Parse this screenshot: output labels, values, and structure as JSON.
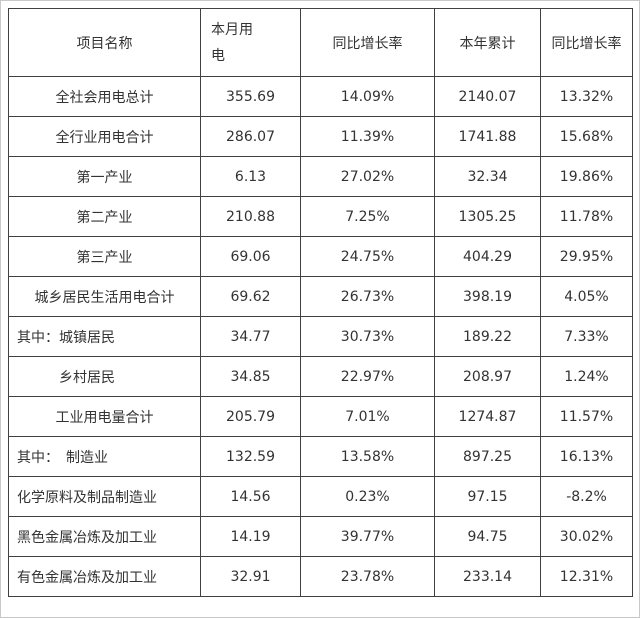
{
  "colors": {
    "background": "#ffffff",
    "page_border": "#c8c8c8",
    "table_border": "#404040",
    "text": "#333333"
  },
  "table": {
    "header": {
      "columns": [
        {
          "label": "项目名称"
        },
        {
          "label": "本月用电"
        },
        {
          "label": "同比增长率"
        },
        {
          "label": "本年累计"
        },
        {
          "label": "同比增长率"
        }
      ]
    },
    "rows": [
      {
        "name": "全社会用电总计",
        "align": "center",
        "month": "355.69",
        "month_yoy": "14.09%",
        "ytd": "2140.07",
        "ytd_yoy": "13.32%"
      },
      {
        "name": "全行业用电合计",
        "align": "center",
        "month": "286.07",
        "month_yoy": "11.39%",
        "ytd": "1741.88",
        "ytd_yoy": "15.68%"
      },
      {
        "name": "第一产业",
        "align": "center",
        "month": "6.13",
        "month_yoy": "27.02%",
        "ytd": "32.34",
        "ytd_yoy": "19.86%"
      },
      {
        "name": "第二产业",
        "align": "center",
        "month": "210.88",
        "month_yoy": "7.25%",
        "ytd": "1305.25",
        "ytd_yoy": "11.78%"
      },
      {
        "name": "第三产业",
        "align": "center",
        "month": "69.06",
        "month_yoy": "24.75%",
        "ytd": "404.29",
        "ytd_yoy": "29.95%"
      },
      {
        "name": "城乡居民生活用电合计",
        "align": "center",
        "month": "69.62",
        "month_yoy": "26.73%",
        "ytd": "398.19",
        "ytd_yoy": "4.05%"
      },
      {
        "name": "其中：城镇居民",
        "align": "left",
        "month": "34.77",
        "month_yoy": "30.73%",
        "ytd": "189.22",
        "ytd_yoy": "7.33%"
      },
      {
        "name": "　　　乡村居民",
        "align": "left",
        "month": "34.85",
        "month_yoy": "22.97%",
        "ytd": "208.97",
        "ytd_yoy": "1.24%"
      },
      {
        "name": "工业用电量合计",
        "align": "center",
        "month": "205.79",
        "month_yoy": "7.01%",
        "ytd": "1274.87",
        "ytd_yoy": "11.57%"
      },
      {
        "name": "其中：　制造业",
        "align": "left",
        "month": "132.59",
        "month_yoy": "13.58%",
        "ytd": "897.25",
        "ytd_yoy": "16.13%"
      },
      {
        "name": "化学原料及制品制造业",
        "align": "left",
        "month": "14.56",
        "month_yoy": "0.23%",
        "ytd": "97.15",
        "ytd_yoy": "-8.2%"
      },
      {
        "name": "黑色金属冶炼及加工业",
        "align": "left",
        "month": "14.19",
        "month_yoy": "39.77%",
        "ytd": "94.75",
        "ytd_yoy": "30.02%"
      },
      {
        "name": "有色金属冶炼及加工业",
        "align": "left",
        "month": "32.91",
        "month_yoy": "23.78%",
        "ytd": "233.14",
        "ytd_yoy": "12.31%"
      }
    ]
  }
}
